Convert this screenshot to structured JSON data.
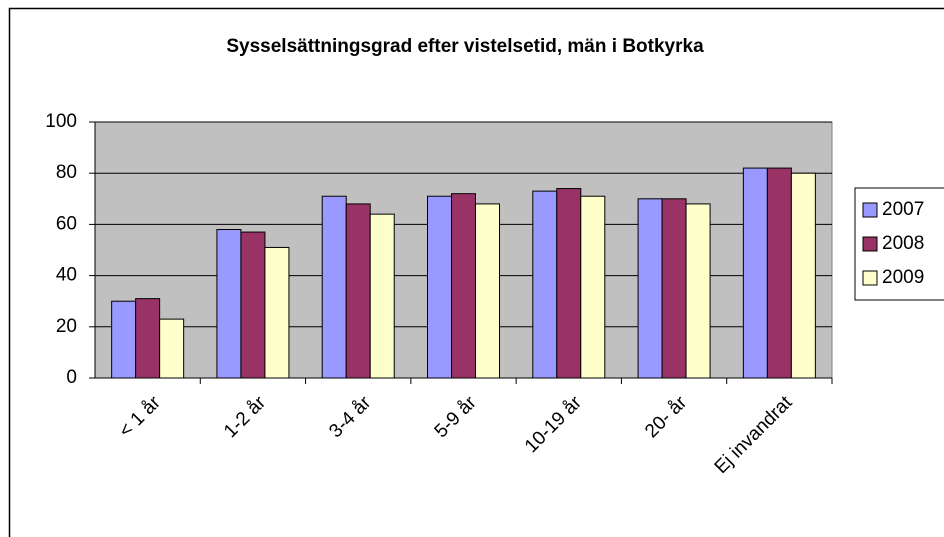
{
  "chart_data": {
    "type": "bar",
    "title": "Sysselsättningsgrad efter vistelsetid, män i Botkyrka",
    "categories": [
      "< 1 år",
      "1-2 år",
      "3-4 år",
      "5-9 år",
      "10-19 år",
      "20- år",
      "Ej invandrat"
    ],
    "series": [
      {
        "name": "2007",
        "color": "#9999ff",
        "values": [
          30,
          58,
          71,
          71,
          73,
          70,
          82
        ]
      },
      {
        "name": "2008",
        "color": "#993366",
        "values": [
          31,
          57,
          68,
          72,
          74,
          70,
          82
        ]
      },
      {
        "name": "2009",
        "color": "#ffffcc",
        "values": [
          23,
          51,
          64,
          68,
          71,
          68,
          80
        ]
      }
    ],
    "ylim": [
      0,
      100
    ],
    "yticks": [
      0,
      20,
      40,
      60,
      80,
      100
    ],
    "grid": true,
    "legend": "right"
  }
}
